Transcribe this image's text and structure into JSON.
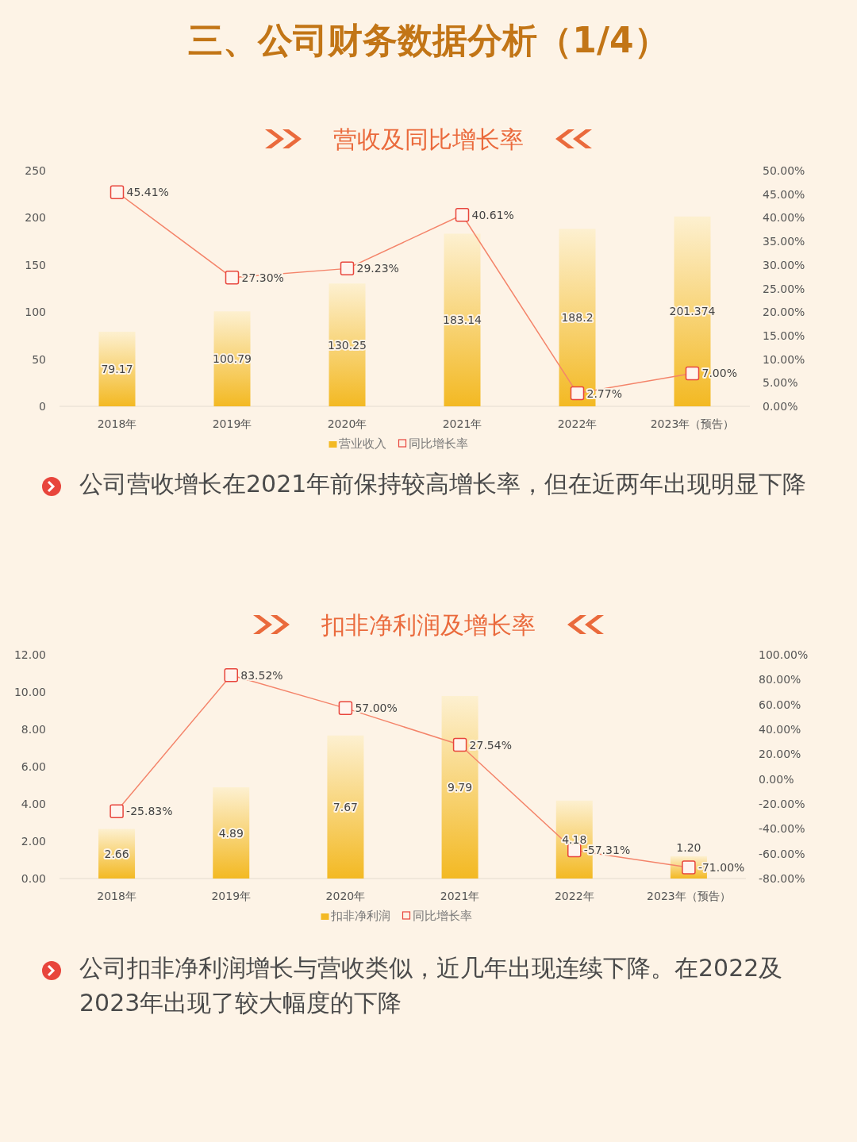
{
  "chart_data": [
    {
      "type": "bar",
      "title": "三、公司财务数据分析（1/4）",
      "subtitle": "营收及同比增长率",
      "categories": [
        "2018年",
        "2019年",
        "2020年",
        "2021年",
        "2022年",
        "2023年（预告）"
      ],
      "series": [
        {
          "name": "营业收入",
          "color": "#f3b923",
          "values": [
            79.17,
            100.79,
            130.25,
            183.14,
            188.2,
            201.374
          ],
          "value_labels": [
            "79.17",
            "100.79",
            "130.25",
            "183.14",
            "188.2",
            "201.374"
          ]
        },
        {
          "name": "同比增长率",
          "type": "line",
          "axis": "y2",
          "color": "#f4846a",
          "values": [
            45.41,
            27.3,
            29.23,
            40.61,
            2.77,
            7.0
          ],
          "value_labels": [
            "45.41%",
            "27.30%",
            "29.23%",
            "40.61%",
            "2.77%",
            "7.00%"
          ]
        }
      ],
      "ylim": [
        0,
        250
      ],
      "yticks": [
        0,
        50,
        100,
        150,
        200,
        250
      ],
      "y2lim": [
        0,
        50
      ],
      "y2ticks": [
        {
          "value": 0,
          "label": "0.00%"
        },
        {
          "value": 5,
          "label": "5.00%"
        },
        {
          "value": 10,
          "label": "10.00%"
        },
        {
          "value": 15,
          "label": "15.00%"
        },
        {
          "value": 20,
          "label": "20.00%"
        },
        {
          "value": 25,
          "label": "25.00%"
        },
        {
          "value": 30,
          "label": "30.00%"
        },
        {
          "value": 35,
          "label": "35.00%"
        },
        {
          "value": 40,
          "label": "40.00%"
        },
        {
          "value": 45,
          "label": "45.00%"
        },
        {
          "value": 50,
          "label": "50.00%"
        }
      ],
      "marker": "square",
      "legend": "bottom",
      "annotations": [
        "公司营收增长在2021年前保持较高增长率，但在近两年出现明显下降"
      ]
    },
    {
      "type": "bar",
      "title": "扣非净利润及增长率",
      "categories": [
        "2018年",
        "2019年",
        "2020年",
        "2021年",
        "2022年",
        "2023年（预告）"
      ],
      "series": [
        {
          "name": "扣非净利润",
          "color": "#f3b923",
          "values": [
            2.66,
            4.89,
            7.67,
            9.79,
            4.18,
            1.2
          ],
          "value_labels": [
            "2.66",
            "4.89",
            "7.67",
            "9.79",
            "4.18",
            "1.20"
          ]
        },
        {
          "name": "同比增长率",
          "type": "line",
          "axis": "y2",
          "color": "#f4846a",
          "values": [
            -25.83,
            83.52,
            57.0,
            27.54,
            -57.31,
            -71.0
          ],
          "value_labels": [
            "-25.83%",
            "83.52%",
            "57.00%",
            "27.54%",
            "-57.31%",
            "-71.00%"
          ]
        }
      ],
      "ylim": [
        0,
        12
      ],
      "yticks": [
        {
          "value": 0,
          "label": "0.00"
        },
        {
          "value": 2,
          "label": "2.00"
        },
        {
          "value": 4,
          "label": "4.00"
        },
        {
          "value": 6,
          "label": "6.00"
        },
        {
          "value": 8,
          "label": "8.00"
        },
        {
          "value": 10,
          "label": "10.00"
        },
        {
          "value": 12,
          "label": "12.00"
        }
      ],
      "y2lim": [
        -80,
        100
      ],
      "y2ticks": [
        {
          "value": -80,
          "label": "-80.00%"
        },
        {
          "value": -60,
          "label": "-60.00%"
        },
        {
          "value": -40,
          "label": "-40.00%"
        },
        {
          "value": -20,
          "label": "-20.00%"
        },
        {
          "value": 0,
          "label": "0.00%"
        },
        {
          "value": 20,
          "label": "20.00%"
        },
        {
          "value": 40,
          "label": "40.00%"
        },
        {
          "value": 60,
          "label": "60.00%"
        },
        {
          "value": 80,
          "label": "80.00%"
        },
        {
          "value": 100,
          "label": "100.00%"
        }
      ],
      "marker": "square",
      "legend": "bottom",
      "annotations": [
        "公司扣非净利润增长与营收类似，近几年出现连续下降。在2022及2023年出现了较大幅度的下降"
      ]
    }
  ]
}
